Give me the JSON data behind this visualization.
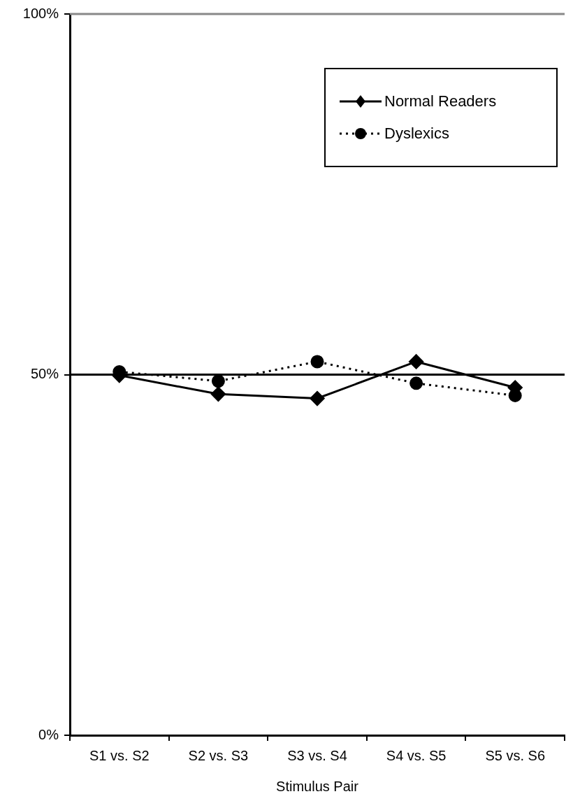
{
  "chart_data": {
    "type": "line",
    "xlabel": "Stimulus Pair",
    "categories": [
      "S1 vs. S2",
      "S2 vs. S3",
      "S3 vs. S4",
      "S4 vs. S5",
      "S5 vs. S6"
    ],
    "series": [
      {
        "name": "Normal Readers",
        "color": "#000000",
        "values": [
          49.9,
          47.3,
          46.7,
          51.8,
          48.2
        ],
        "marker": "diamond",
        "line_style": "solid"
      },
      {
        "name": "Dyslexics",
        "color": "#000000",
        "values": [
          50.4,
          49.1,
          51.8,
          48.8,
          47.1
        ],
        "marker": "circle",
        "line_style": "dotted"
      }
    ],
    "ylim": [
      0,
      100
    ],
    "yticks": [
      {
        "value": 0,
        "label": "0%"
      },
      {
        "value": 50,
        "label": "50%"
      },
      {
        "value": 100,
        "label": "100%"
      }
    ],
    "ref_lines": [
      {
        "axis": "y",
        "value": 50,
        "color": "#000000"
      }
    ],
    "grid": false,
    "legend": "top right"
  }
}
